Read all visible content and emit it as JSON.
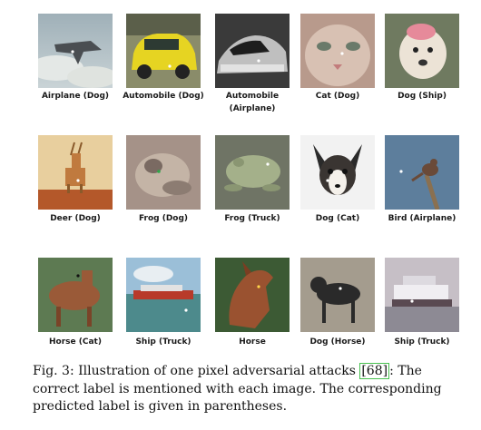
{
  "figure": {
    "rows": [
      [
        {
          "label": "Airplane (Dog)",
          "subject": "airplane"
        },
        {
          "label": "Automobile (Dog)",
          "subject": "yellow-taxi"
        },
        {
          "label": "Automobile\n(Airplane)",
          "subject": "car-grayscale"
        },
        {
          "label": "Cat (Dog)",
          "subject": "cat-face"
        },
        {
          "label": "Dog (Ship)",
          "subject": "dog-white"
        }
      ],
      [
        {
          "label": "Deer (Dog)",
          "subject": "deer"
        },
        {
          "label": "Frog (Dog)",
          "subject": "frog-blurry"
        },
        {
          "label": "Frog (Truck)",
          "subject": "frog-green"
        },
        {
          "label": "Dog (Cat)",
          "subject": "chihuahua"
        },
        {
          "label": "Bird (Airplane)",
          "subject": "bird-on-branch"
        }
      ],
      [
        {
          "label": "Horse (Cat)",
          "subject": "horse-brown"
        },
        {
          "label": "Ship (Truck)",
          "subject": "ship-sea"
        },
        {
          "label": "Horse",
          "subject": "horse-head"
        },
        {
          "label": "Dog (Horse)",
          "subject": "dog-standing"
        },
        {
          "label": "Ship (Truck)",
          "subject": "ship-gray"
        }
      ]
    ]
  },
  "caption": {
    "prefix": "Fig. 3: Illustration of one pixel adversarial attacks ",
    "ref": "[68]",
    "suffix": ": The correct label is mentioned with each image. The corresponding predicted label is given in parentheses."
  },
  "colors": {
    "reference_box": "#47c14f",
    "perturbed_pixel": "#ffffff"
  }
}
